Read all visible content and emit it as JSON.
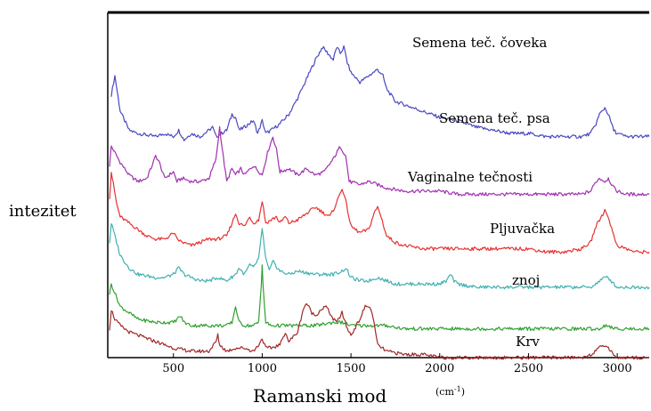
{
  "chart_data": {
    "type": "line",
    "title": "",
    "xlabel": "Ramanski mod",
    "xunit": "(cm",
    "xunit_exp": "-1",
    "xunit_close": ")",
    "ylabel": "intezitet",
    "xlim": [
      130,
      3180
    ],
    "ylim": [
      0,
      100
    ],
    "grid": false,
    "x_ticks": [
      500,
      1000,
      1500,
      2000,
      2500,
      3000
    ],
    "x_tick_labels": [
      "500",
      "1000",
      "1500",
      "2000",
      "2500",
      "3000"
    ],
    "series": [
      {
        "name": "Semena teč. čoveka",
        "color": "#4848c0",
        "x": [
          150,
          170,
          200,
          250,
          300,
          400,
          450,
          500,
          530,
          560,
          600,
          650,
          700,
          720,
          740,
          800,
          830,
          850,
          870,
          900,
          950,
          975,
          1000,
          1020,
          1050,
          1100,
          1150,
          1200,
          1250,
          1300,
          1340,
          1370,
          1400,
          1420,
          1440,
          1460,
          1480,
          1500,
          1550,
          1600,
          1650,
          1680,
          1700,
          1750,
          1800,
          1900,
          2000,
          2100,
          2200,
          2300,
          2400,
          2500,
          2600,
          2700,
          2800,
          2850,
          2880,
          2900,
          2930,
          2950,
          2980,
          3000,
          3050,
          3100,
          3180
        ],
        "y": [
          82,
          88,
          77,
          71,
          70,
          69,
          70,
          69,
          71,
          68,
          70,
          69,
          71,
          72,
          69,
          71,
          76,
          75,
          71,
          72,
          74,
          70,
          74,
          70,
          71,
          73,
          76,
          81,
          87,
          93,
          97,
          95,
          93,
          97,
          95,
          97,
          92,
          89,
          86,
          88,
          90,
          88,
          84,
          80,
          79,
          77,
          75,
          74,
          72,
          71,
          70,
          70,
          69,
          69,
          69,
          70,
          73,
          76,
          78,
          76,
          71,
          70,
          69,
          69,
          69
        ]
      },
      {
        "name": "Semena teč. psa",
        "color": "#a030b0",
        "x": [
          140,
          150,
          200,
          250,
          300,
          350,
          380,
          400,
          420,
          450,
          500,
          520,
          550,
          600,
          650,
          700,
          740,
          760,
          780,
          800,
          830,
          850,
          880,
          900,
          950,
          1000,
          1030,
          1060,
          1080,
          1100,
          1150,
          1200,
          1250,
          1300,
          1350,
          1400,
          1440,
          1470,
          1490,
          1550,
          1600,
          1650,
          1700,
          1800,
          1900,
          2000,
          2100,
          2200,
          2300,
          2400,
          2500,
          2600,
          2700,
          2800,
          2850,
          2880,
          2900,
          2930,
          2950,
          2980,
          3000,
          3050,
          3100,
          3180
        ],
        "y": [
          60,
          66,
          61,
          57,
          55,
          56,
          60,
          63,
          61,
          56,
          58,
          55,
          56,
          55,
          55,
          56,
          62,
          72,
          63,
          55,
          59,
          57,
          59,
          57,
          60,
          57,
          64,
          69,
          65,
          58,
          59,
          57,
          59,
          57,
          58,
          62,
          66,
          63,
          55,
          54,
          55,
          54,
          53,
          52,
          52,
          52,
          51,
          51,
          51,
          51,
          51,
          51,
          51,
          51,
          52,
          55,
          56,
          55,
          56,
          53,
          52,
          51,
          51,
          51
        ]
      },
      {
        "name": "Vaginalne tečnosti",
        "color": "#e83030",
        "x": [
          140,
          150,
          180,
          200,
          250,
          300,
          350,
          400,
          450,
          480,
          500,
          520,
          550,
          600,
          650,
          700,
          750,
          800,
          830,
          850,
          870,
          900,
          930,
          950,
          980,
          1000,
          1020,
          1050,
          1080,
          1100,
          1130,
          1150,
          1200,
          1250,
          1300,
          1350,
          1380,
          1400,
          1430,
          1450,
          1470,
          1500,
          1550,
          1600,
          1630,
          1650,
          1670,
          1700,
          1750,
          1800,
          1900,
          2000,
          2100,
          2200,
          2300,
          2400,
          2500,
          2600,
          2700,
          2800,
          2850,
          2880,
          2900,
          2930,
          2950,
          2980,
          3000,
          3050,
          3100,
          3180
        ],
        "y": [
          50,
          58,
          48,
          44,
          42,
          40,
          38,
          37,
          37,
          38,
          39,
          37,
          36,
          35,
          36,
          37,
          37,
          38,
          42,
          45,
          42,
          41,
          44,
          42,
          43,
          49,
          42,
          43,
          44,
          42,
          44,
          42,
          43,
          45,
          47,
          45,
          44,
          46,
          50,
          53,
          49,
          41,
          39,
          40,
          45,
          47,
          44,
          38,
          36,
          35,
          34,
          34,
          34,
          34,
          34,
          34,
          34,
          33,
          33,
          34,
          36,
          41,
          43,
          46,
          44,
          38,
          35,
          34,
          33,
          33
        ]
      },
      {
        "name": "Pljuvačka",
        "color": "#40b0b0",
        "x": [
          140,
          150,
          200,
          250,
          300,
          400,
          450,
          500,
          530,
          560,
          600,
          650,
          700,
          750,
          800,
          850,
          870,
          900,
          930,
          950,
          980,
          1000,
          1020,
          1040,
          1060,
          1100,
          1150,
          1200,
          1300,
          1400,
          1450,
          1470,
          1500,
          1550,
          1600,
          1650,
          1700,
          1750,
          1800,
          1900,
          2000,
          2040,
          2060,
          2080,
          2100,
          2200,
          2300,
          2400,
          2500,
          2600,
          2700,
          2800,
          2850,
          2880,
          2900,
          2930,
          2950,
          2980,
          3000,
          3050,
          3100,
          3180
        ],
        "y": [
          36,
          42,
          32,
          28,
          26,
          25,
          25,
          26,
          28,
          26,
          25,
          24,
          24,
          25,
          24,
          26,
          28,
          26,
          29,
          28,
          31,
          40,
          31,
          27,
          30,
          27,
          26,
          27,
          26,
          26,
          27,
          28,
          25,
          24,
          24,
          25,
          24,
          23,
          23,
          23,
          23,
          24,
          26,
          24,
          23,
          22,
          22,
          22,
          22,
          22,
          22,
          22,
          22,
          23,
          24,
          25,
          25,
          23,
          22,
          22,
          22,
          22
        ]
      },
      {
        "name": "znoj",
        "color": "#30a030",
        "x": [
          140,
          150,
          200,
          250,
          300,
          400,
          500,
          520,
          540,
          560,
          600,
          700,
          800,
          830,
          850,
          870,
          900,
          950,
          980,
          995,
          1000,
          1005,
          1020,
          1050,
          1100,
          1150,
          1200,
          1300,
          1400,
          1450,
          1500,
          1550,
          1600,
          1700,
          1800,
          1900,
          2000,
          2100,
          2200,
          2300,
          2400,
          2500,
          2600,
          2700,
          2800,
          2850,
          2880,
          2900,
          2930,
          2950,
          2980,
          3000,
          3050,
          3100,
          3180
        ],
        "y": [
          20,
          23,
          16,
          14,
          12,
          11,
          11,
          12,
          13,
          11,
          10,
          10,
          10,
          11,
          16,
          11,
          10,
          10,
          11,
          23,
          29,
          22,
          11,
          10,
          10,
          10,
          10,
          10,
          11,
          11,
          10,
          10,
          10,
          10,
          9,
          9,
          9,
          9,
          9,
          9,
          9,
          9,
          9,
          9,
          9,
          9,
          9,
          9,
          10,
          10,
          9,
          9,
          9,
          9,
          9
        ]
      },
      {
        "name": "Krv",
        "color": "#a02828",
        "x": [
          140,
          150,
          170,
          200,
          250,
          300,
          400,
          500,
          600,
          700,
          740,
          750,
          760,
          800,
          850,
          900,
          950,
          980,
          1000,
          1020,
          1050,
          1100,
          1130,
          1150,
          1200,
          1230,
          1250,
          1280,
          1300,
          1330,
          1360,
          1400,
          1420,
          1450,
          1480,
          1500,
          1550,
          1580,
          1600,
          1620,
          1650,
          1700,
          1800,
          1900,
          2000,
          2100,
          2200,
          2300,
          2400,
          2500,
          2600,
          2700,
          2800,
          2850,
          2880,
          2900,
          2930,
          2950,
          2980,
          3000,
          3050,
          3100,
          3180
        ],
        "y": [
          9,
          15,
          12,
          10,
          8,
          7,
          5,
          3,
          2,
          2,
          5,
          7,
          4,
          2,
          3,
          3,
          2,
          4,
          6,
          3,
          3,
          4,
          8,
          5,
          8,
          15,
          17,
          14,
          13,
          15,
          16,
          12,
          11,
          14,
          9,
          7,
          12,
          16,
          16,
          14,
          4,
          2,
          1,
          1,
          0,
          0,
          0,
          0,
          0,
          0,
          0,
          0,
          0,
          1,
          2,
          3,
          4,
          3,
          1,
          0,
          0,
          0,
          0
        ]
      }
    ]
  }
}
